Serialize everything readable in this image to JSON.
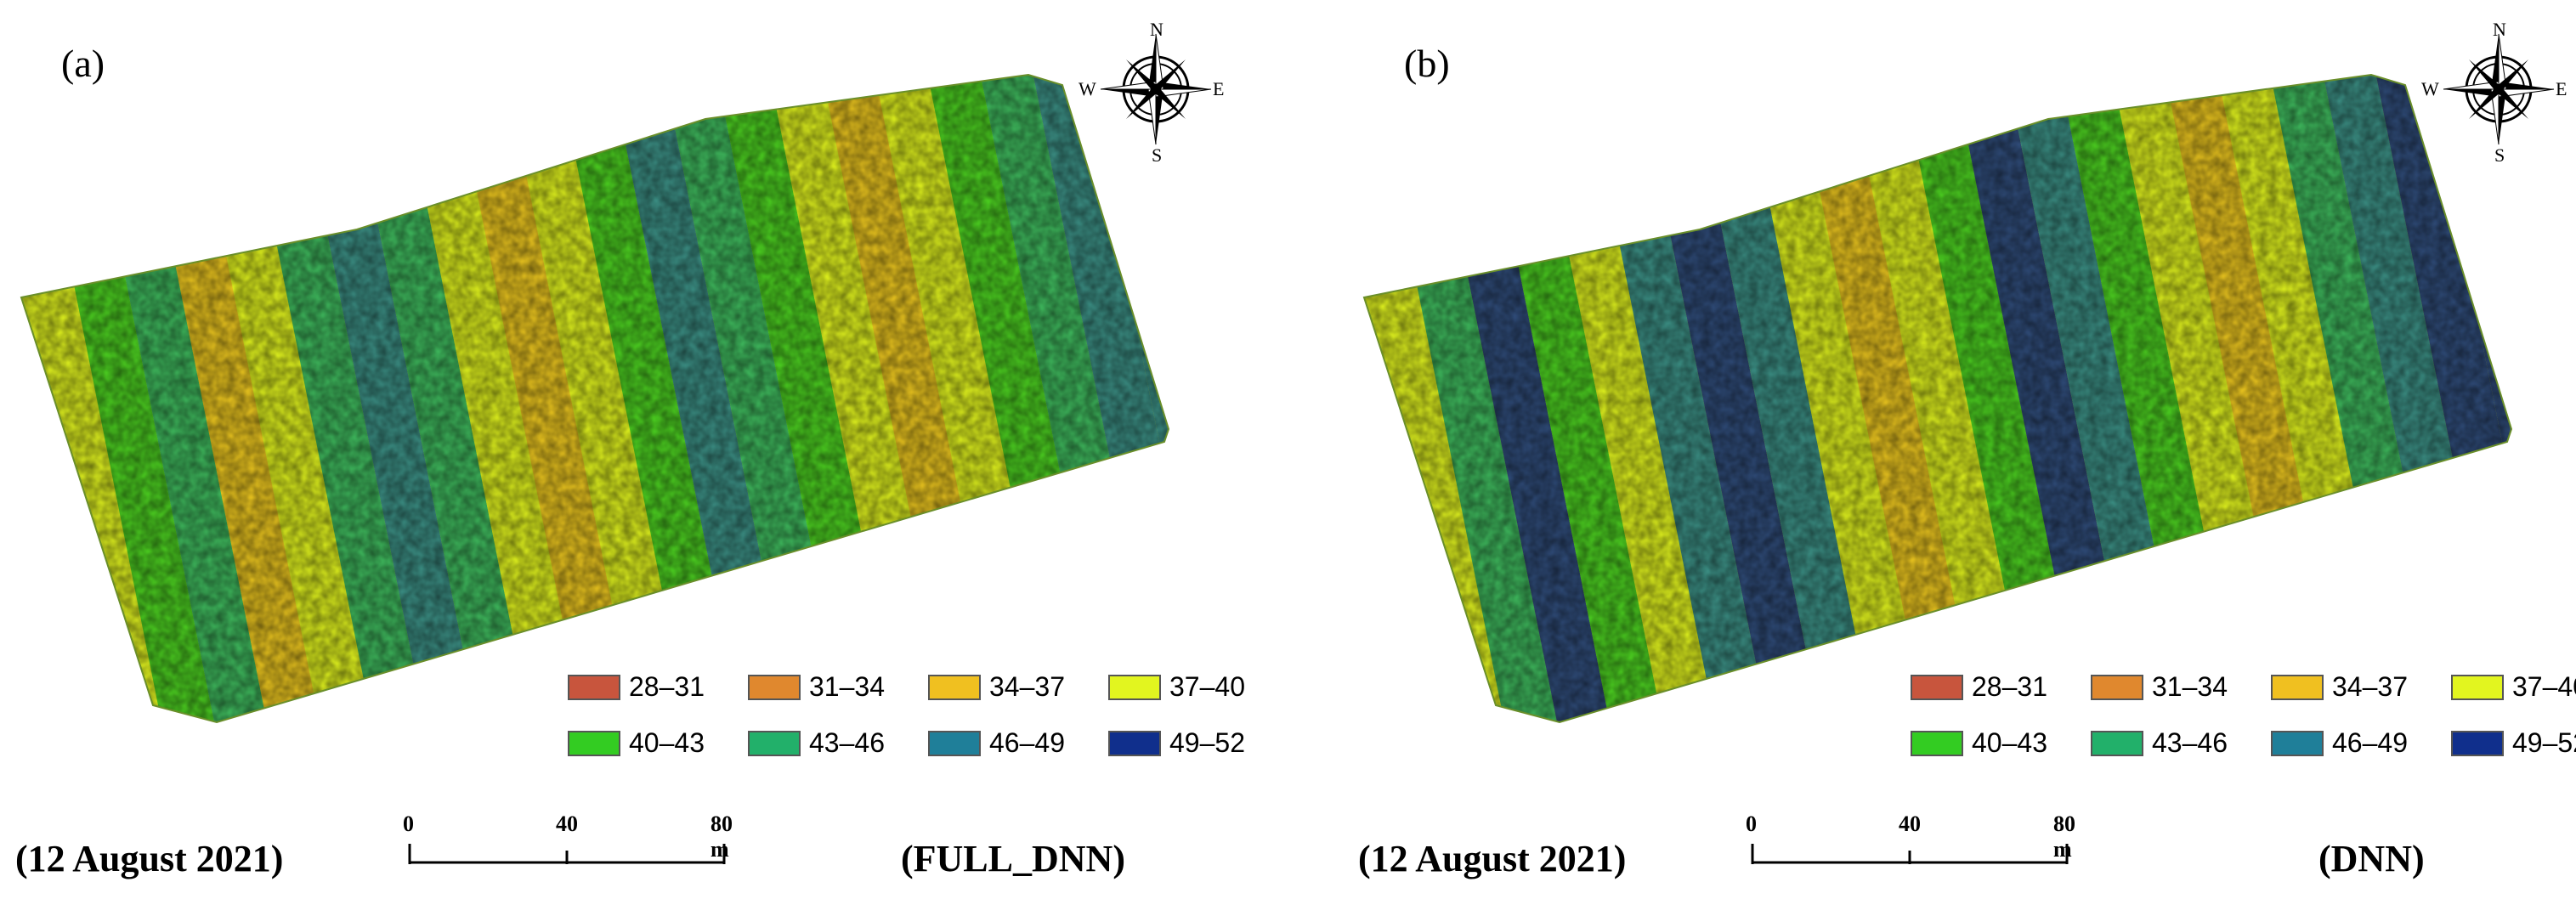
{
  "legend": [
    {
      "label": "28–31",
      "color": "#c8553d"
    },
    {
      "label": "31–34",
      "color": "#e0882e"
    },
    {
      "label": "34–37",
      "color": "#f0c020"
    },
    {
      "label": "37–40",
      "color": "#e2f51f"
    },
    {
      "label": "40–43",
      "color": "#33cc22"
    },
    {
      "label": "43–46",
      "color": "#22b06a"
    },
    {
      "label": "46–49",
      "color": "#1f7f99"
    },
    {
      "label": "49–52",
      "color": "#102f8c"
    }
  ],
  "scale_bar": {
    "ticks": [
      "0",
      "40",
      "80 m"
    ]
  },
  "compass": {
    "n": "N",
    "s": "S",
    "e": "E",
    "w": "W"
  },
  "panels": [
    {
      "label": "(a)",
      "date": "(12 August 2021)",
      "model": "(FULL_DNN)"
    },
    {
      "label": "(b)",
      "date": "(12 August 2021)",
      "model": "(DNN)"
    }
  ]
}
